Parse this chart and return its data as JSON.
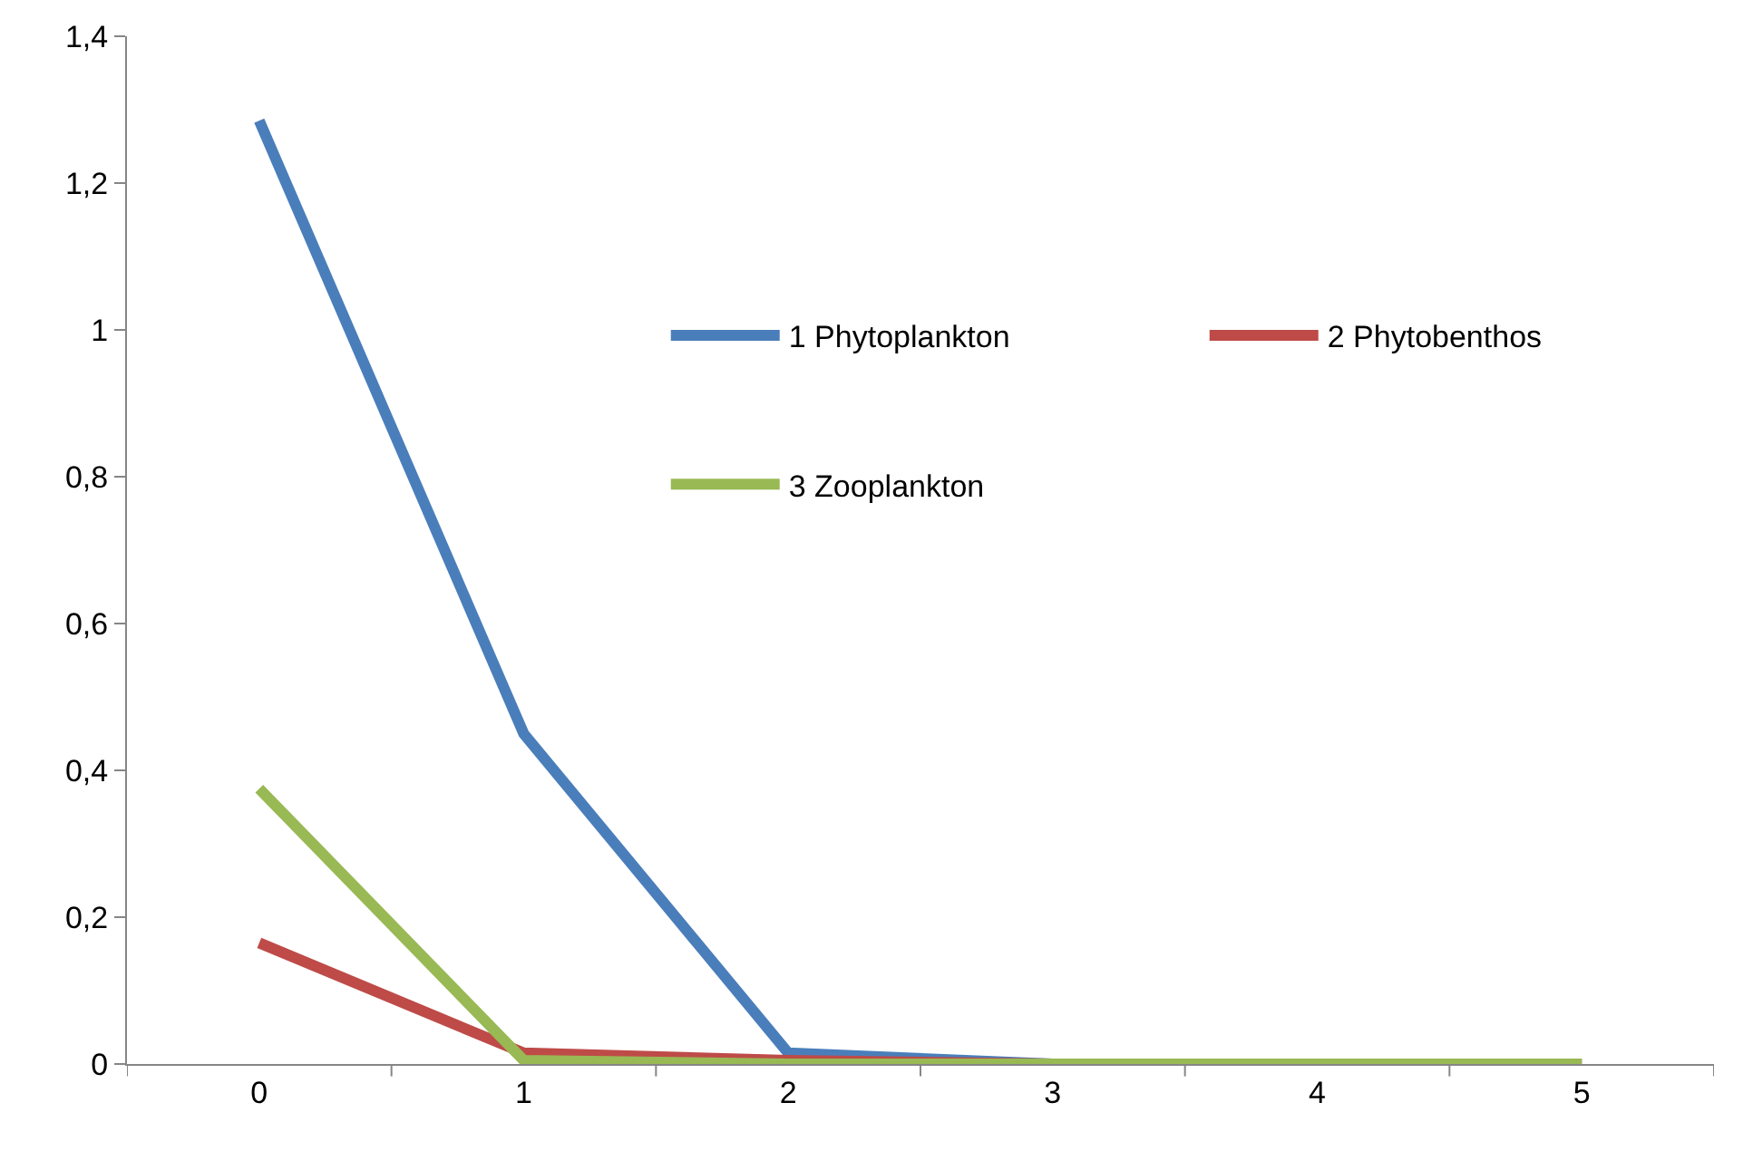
{
  "chart_data": {
    "type": "line",
    "categories": [
      "0",
      "1",
      "2",
      "3",
      "4",
      "5"
    ],
    "series": [
      {
        "name": "1 Phytoplankton",
        "color": "#4a7ebb",
        "values": [
          1.285,
          0.45,
          0.015,
          0,
          0,
          0
        ]
      },
      {
        "name": "2 Phytobenthos",
        "color": "#be4b48",
        "values": [
          0.165,
          0.015,
          0.005,
          0,
          0,
          0
        ]
      },
      {
        "name": "3 Zooplankton",
        "color": "#98b954",
        "values": [
          0.375,
          0.005,
          0,
          0,
          0,
          0
        ]
      }
    ],
    "ylim": [
      0,
      1.4
    ],
    "yticks": [
      0,
      {
        "value": 0.2,
        "label": "0,2"
      },
      {
        "value": 0.4,
        "label": "0,4"
      },
      {
        "value": 0.6,
        "label": "0,6"
      },
      {
        "value": 0.8,
        "label": "0,8"
      },
      1,
      {
        "value": 1.2,
        "label": "1,2"
      },
      {
        "value": 1.4,
        "label": "1,4"
      }
    ],
    "grid": false,
    "legend": "top right",
    "marker": "none",
    "line_style": "solid"
  }
}
